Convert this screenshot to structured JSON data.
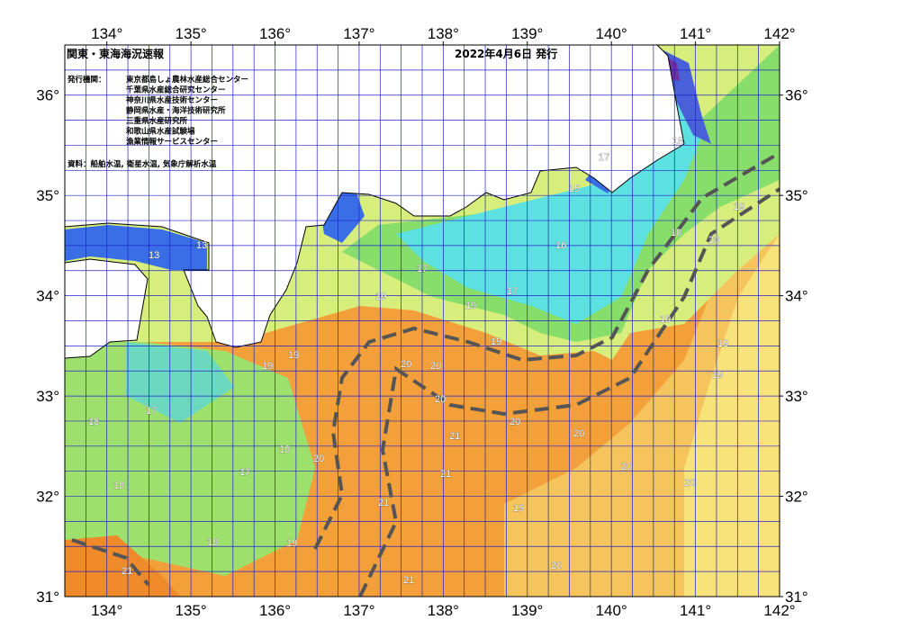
{
  "map": {
    "title": "関東・東海海況速報",
    "date": "2022年4月6日 発行",
    "publisher_heading": "発行機関：",
    "publishers": [
      "東京都島しょ農林水産総合センター",
      "千葉県水産総合研究センター",
      "神奈川県水産技術センター",
      "静岡県水産・海洋技術研究所",
      "三重県水産研究所",
      "和歌山県水産試験場",
      "漁業情報サービスセンター"
    ],
    "source": "資料：船舶水温, 衛星水温, 気象庁解析水温",
    "xlim": [
      133.5,
      142
    ],
    "ylim": [
      31,
      36.5
    ],
    "xticks": [
      {
        "value": 134,
        "label": "134°"
      },
      {
        "value": 135,
        "label": "135°"
      },
      {
        "value": 136,
        "label": "136°"
      },
      {
        "value": 137,
        "label": "137°"
      },
      {
        "value": 138,
        "label": "138°"
      },
      {
        "value": 139,
        "label": "139°"
      },
      {
        "value": 140,
        "label": "140°"
      },
      {
        "value": 141,
        "label": "141°"
      },
      {
        "value": 142,
        "label": "142°"
      }
    ],
    "yticks": [
      {
        "value": 31,
        "label": "31°"
      },
      {
        "value": 32,
        "label": "32°"
      },
      {
        "value": 33,
        "label": "33°"
      },
      {
        "value": 34,
        "label": "34°"
      },
      {
        "value": 35,
        "label": "35°"
      },
      {
        "value": 36,
        "label": "36°"
      }
    ],
    "contour_labels": [
      "13",
      "13",
      "15",
      "16",
      "17",
      "17",
      "17",
      "18",
      "18",
      "19",
      "19",
      "19",
      "19",
      "19",
      "20",
      "20",
      "20",
      "21",
      "21",
      "21",
      "21",
      "20",
      "20",
      "20",
      "20",
      "19",
      "19",
      "19",
      "20",
      "19",
      "18",
      "18",
      "17",
      "17",
      "18",
      "19",
      "18",
      "21",
      "20",
      "19",
      "20"
    ]
  }
}
